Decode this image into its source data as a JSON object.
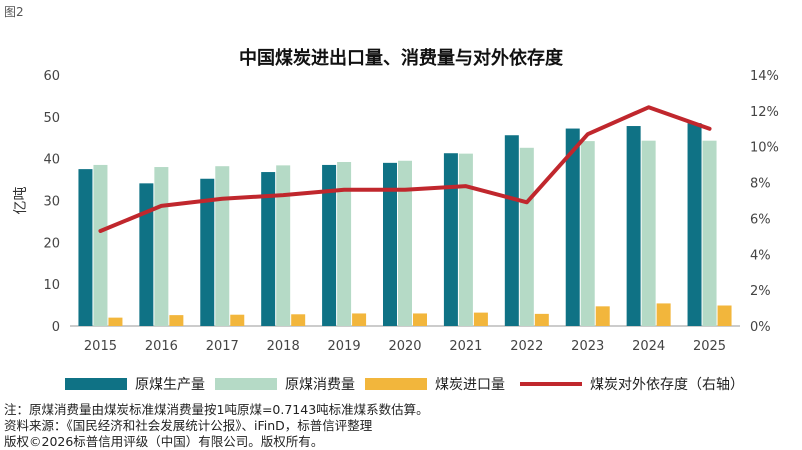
{
  "figure_label": "图2",
  "chart_data": {
    "type": "bar",
    "title": "中国煤炭进出口量、消费量与对外依存度",
    "ylabel": "亿吨",
    "categories": [
      "2015",
      "2016",
      "2017",
      "2018",
      "2019",
      "2020",
      "2021",
      "2022",
      "2023",
      "2024",
      "2025"
    ],
    "ylim": [
      0,
      60
    ],
    "y_ticks": [
      "0",
      "10",
      "20",
      "30",
      "40",
      "50",
      "60"
    ],
    "y2lim": [
      0,
      14
    ],
    "y2_ticks": [
      "0%",
      "2%",
      "4%",
      "6%",
      "8%",
      "10%",
      "12%",
      "14%"
    ],
    "series": [
      {
        "name": "原煤生产量",
        "type": "bar",
        "axis": "left",
        "color": "#0f7285",
        "values": [
          37.5,
          34.1,
          35.2,
          36.8,
          38.5,
          39.0,
          41.3,
          45.6,
          47.2,
          47.8,
          48.5
        ]
      },
      {
        "name": "原煤消费量",
        "type": "bar",
        "axis": "left",
        "color": "#b5dac6",
        "values": [
          38.5,
          38.0,
          38.2,
          38.4,
          39.2,
          39.5,
          41.2,
          42.6,
          44.2,
          44.3,
          44.3
        ]
      },
      {
        "name": "煤炭进口量",
        "type": "bar",
        "axis": "left",
        "color": "#f2b63c",
        "values": [
          2.0,
          2.6,
          2.7,
          2.8,
          3.0,
          3.0,
          3.2,
          2.9,
          4.7,
          5.4,
          4.9
        ]
      },
      {
        "name": "煤炭对外依存度（右轴）",
        "type": "line",
        "axis": "right",
        "color": "#c0272d",
        "values": [
          5.3,
          6.7,
          7.1,
          7.3,
          7.6,
          7.6,
          7.8,
          6.9,
          10.7,
          12.2,
          11.0
        ]
      }
    ],
    "grid": false,
    "legend_position": "bottom"
  },
  "notes": [
    "注：原煤消费量由煤炭标准煤消费量按1吨原煤=0.7143吨标准煤系数估算。",
    "资料来源：《国民经济和社会发展统计公报》、iFinD，标普信评整理",
    "版权©2026标普信用评级（中国）有限公司。版权所有。"
  ]
}
